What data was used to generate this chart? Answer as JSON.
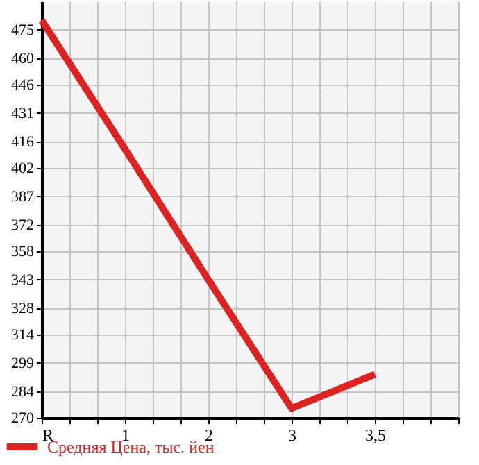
{
  "chart_data": {
    "type": "line",
    "categories": [
      "R",
      "1",
      "2",
      "3",
      "3,5"
    ],
    "series": [
      {
        "name": "Средняя Цена, тыс. йен",
        "color": "#dd2222",
        "values": [
          480,
          412,
          343,
          275,
          293
        ]
      }
    ],
    "ylim": [
      270,
      490
    ],
    "yticks": [
      270,
      284,
      299,
      314,
      328,
      343,
      358,
      372,
      387,
      402,
      416,
      431,
      446,
      460,
      475
    ],
    "grid": true,
    "legend": "bottom left"
  }
}
